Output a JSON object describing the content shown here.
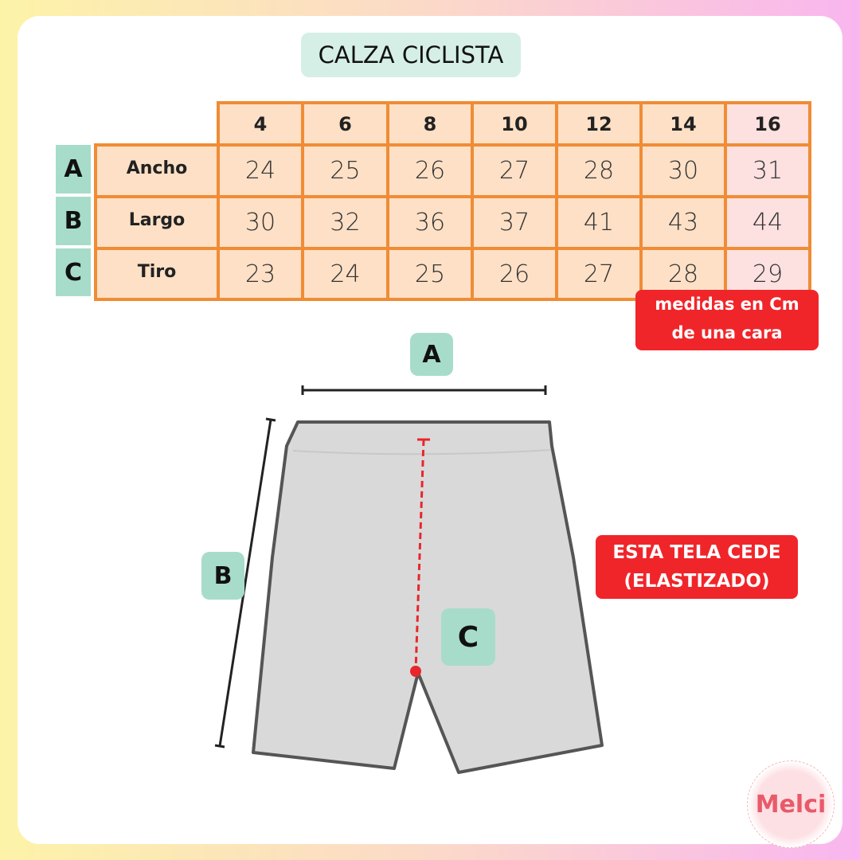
{
  "title": "CALZA CICLISTA",
  "sizes": [
    "4",
    "6",
    "8",
    "10",
    "12",
    "14",
    "16"
  ],
  "rows": [
    {
      "letter": "A",
      "label": "Ancho",
      "values": [
        "24",
        "25",
        "26",
        "27",
        "28",
        "30",
        "31"
      ]
    },
    {
      "letter": "B",
      "label": "Largo",
      "values": [
        "30",
        "32",
        "36",
        "37",
        "41",
        "43",
        "44"
      ]
    },
    {
      "letter": "C",
      "label": "Tiro",
      "values": [
        "23",
        "24",
        "25",
        "26",
        "27",
        "28",
        "29"
      ]
    }
  ],
  "note_line1": "medidas en Cm",
  "note_line2": "de una cara",
  "stretch_line1": "ESTA TELA CEDE",
  "stretch_line2": "(ELASTIZADO)",
  "diagram_labels": {
    "a": "A",
    "b": "B",
    "c": "C"
  },
  "logo": "Melci",
  "colors": {
    "accent_orange": "#f08c35",
    "cell_peach": "#fde0c6",
    "highlight_pink": "#fde0e0",
    "mint": "#a8dcca",
    "red": "#f0252a",
    "garment_gray": "#d9d9d9"
  }
}
